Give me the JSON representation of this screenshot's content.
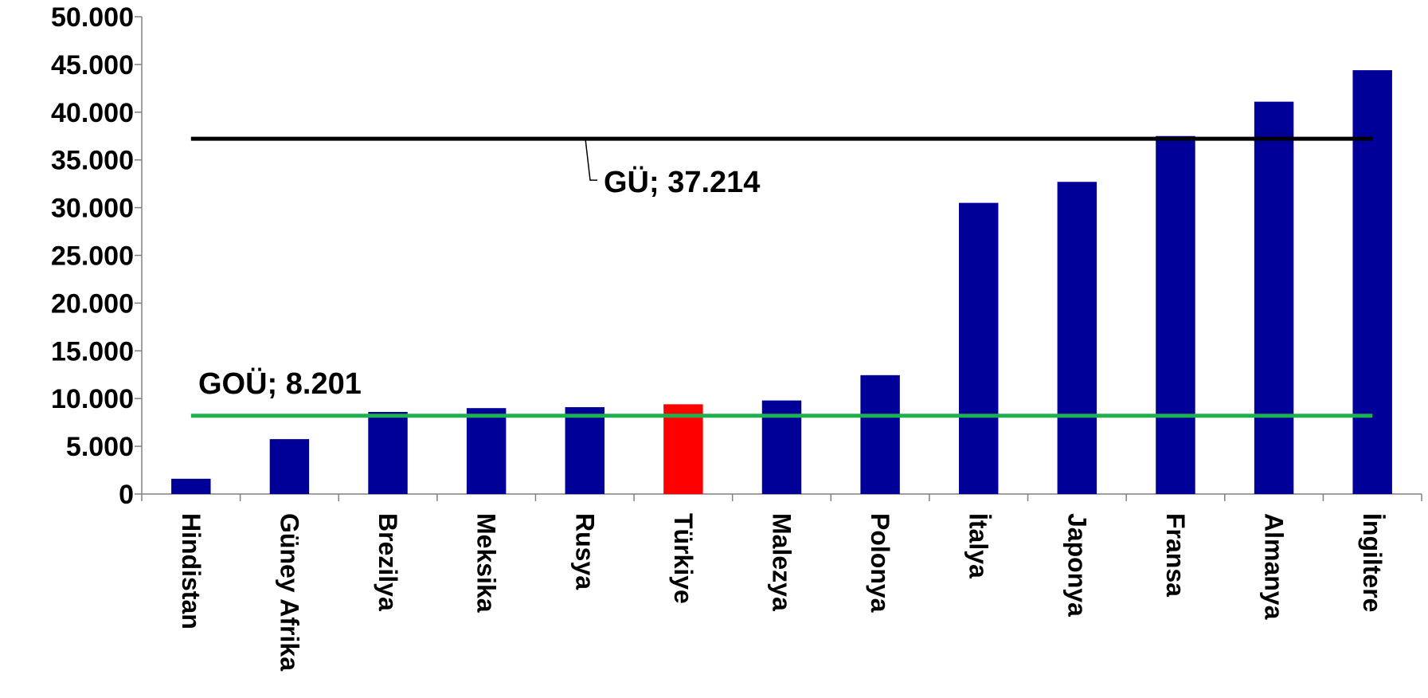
{
  "chart_data": {
    "type": "bar",
    "categories": [
      "Hindistan",
      "Güney Afrika",
      "Brezilya",
      "Meksika",
      "Rusya",
      "Türkiye",
      "Malezya",
      "Polonya",
      "İtalya",
      "Japonya",
      "Fransa",
      "Almanya",
      "İngiltere"
    ],
    "values": [
      1600,
      5750,
      8600,
      9000,
      9100,
      9400,
      9800,
      12450,
      30500,
      32700,
      37500,
      41100,
      44400
    ],
    "colors": [
      "#000099",
      "#000099",
      "#000099",
      "#000099",
      "#000099",
      "#ff0000",
      "#000099",
      "#000099",
      "#000099",
      "#000099",
      "#000099",
      "#000099",
      "#000099"
    ],
    "ylim": [
      0,
      50000
    ],
    "yticks": [
      0,
      {
        "value": 5000,
        "label": "5.000"
      },
      {
        "value": 10000,
        "label": "10.000"
      },
      {
        "value": 15000,
        "label": "15.000"
      },
      {
        "value": 20000,
        "label": "20.000"
      },
      {
        "value": 25000,
        "label": "25.000"
      },
      {
        "value": 30000,
        "label": "30.000"
      },
      {
        "value": 35000,
        "label": "35.000"
      },
      {
        "value": 40000,
        "label": "40.000"
      },
      {
        "value": 45000,
        "label": "45.000"
      },
      {
        "value": 50000,
        "label": "50.000"
      }
    ],
    "reference_lines": [
      {
        "label": "GÜ; 37.214",
        "value": 37214,
        "color": "#000000"
      },
      {
        "label": "GOÜ; 8.201",
        "value": 8201,
        "color": "#1fb050"
      }
    ]
  }
}
